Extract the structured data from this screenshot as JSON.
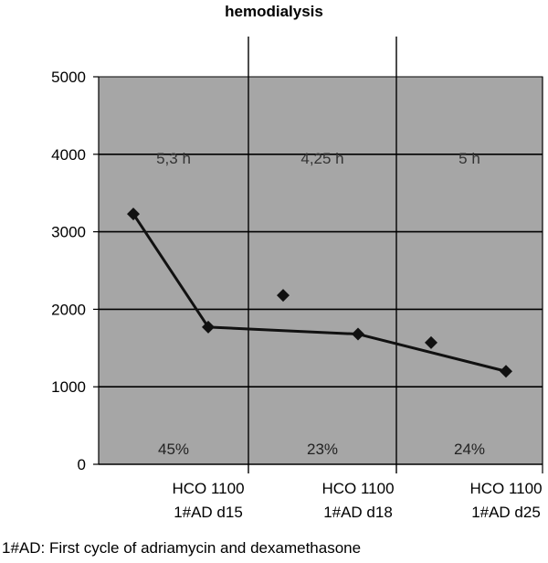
{
  "chart_data": {
    "type": "line",
    "title": "hemodialysis",
    "xlabel": "",
    "ylabel": "",
    "ylim": [
      0,
      5000
    ],
    "yticks": [
      0,
      1000,
      2000,
      3000,
      4000,
      5000
    ],
    "grid": true,
    "x_groups": [
      {
        "label_line1": "HCO 1100",
        "label_line2": "1#AD d15",
        "duration": "5,3 h",
        "percent": "45%"
      },
      {
        "label_line1": "HCO 1100",
        "label_line2": "1#AD d18",
        "duration": "4,25 h",
        "percent": "23%"
      },
      {
        "label_line1": "HCO 1100",
        "label_line2": "1#AD d25",
        "duration": "5 h",
        "percent": "24%"
      }
    ],
    "series": [
      {
        "points": [
          {
            "group": 0,
            "pos": "start",
            "y": 3230,
            "connected": true
          },
          {
            "group": 0,
            "pos": "end",
            "y": 1770,
            "connected": true
          },
          {
            "group": 1,
            "pos": "start",
            "y": 2180,
            "connected": false
          },
          {
            "group": 1,
            "pos": "end",
            "y": 1680,
            "connected": true
          },
          {
            "group": 2,
            "pos": "start",
            "y": 1570,
            "connected": false
          },
          {
            "group": 2,
            "pos": "end",
            "y": 1200,
            "connected": true
          }
        ]
      }
    ]
  },
  "footnote": "1#AD: First cycle of adriamycin and dexamethasone",
  "colors": {
    "plot_bg": "#a6a6a6",
    "grid": "#000000",
    "line": "#111111",
    "marker": "#111111"
  }
}
